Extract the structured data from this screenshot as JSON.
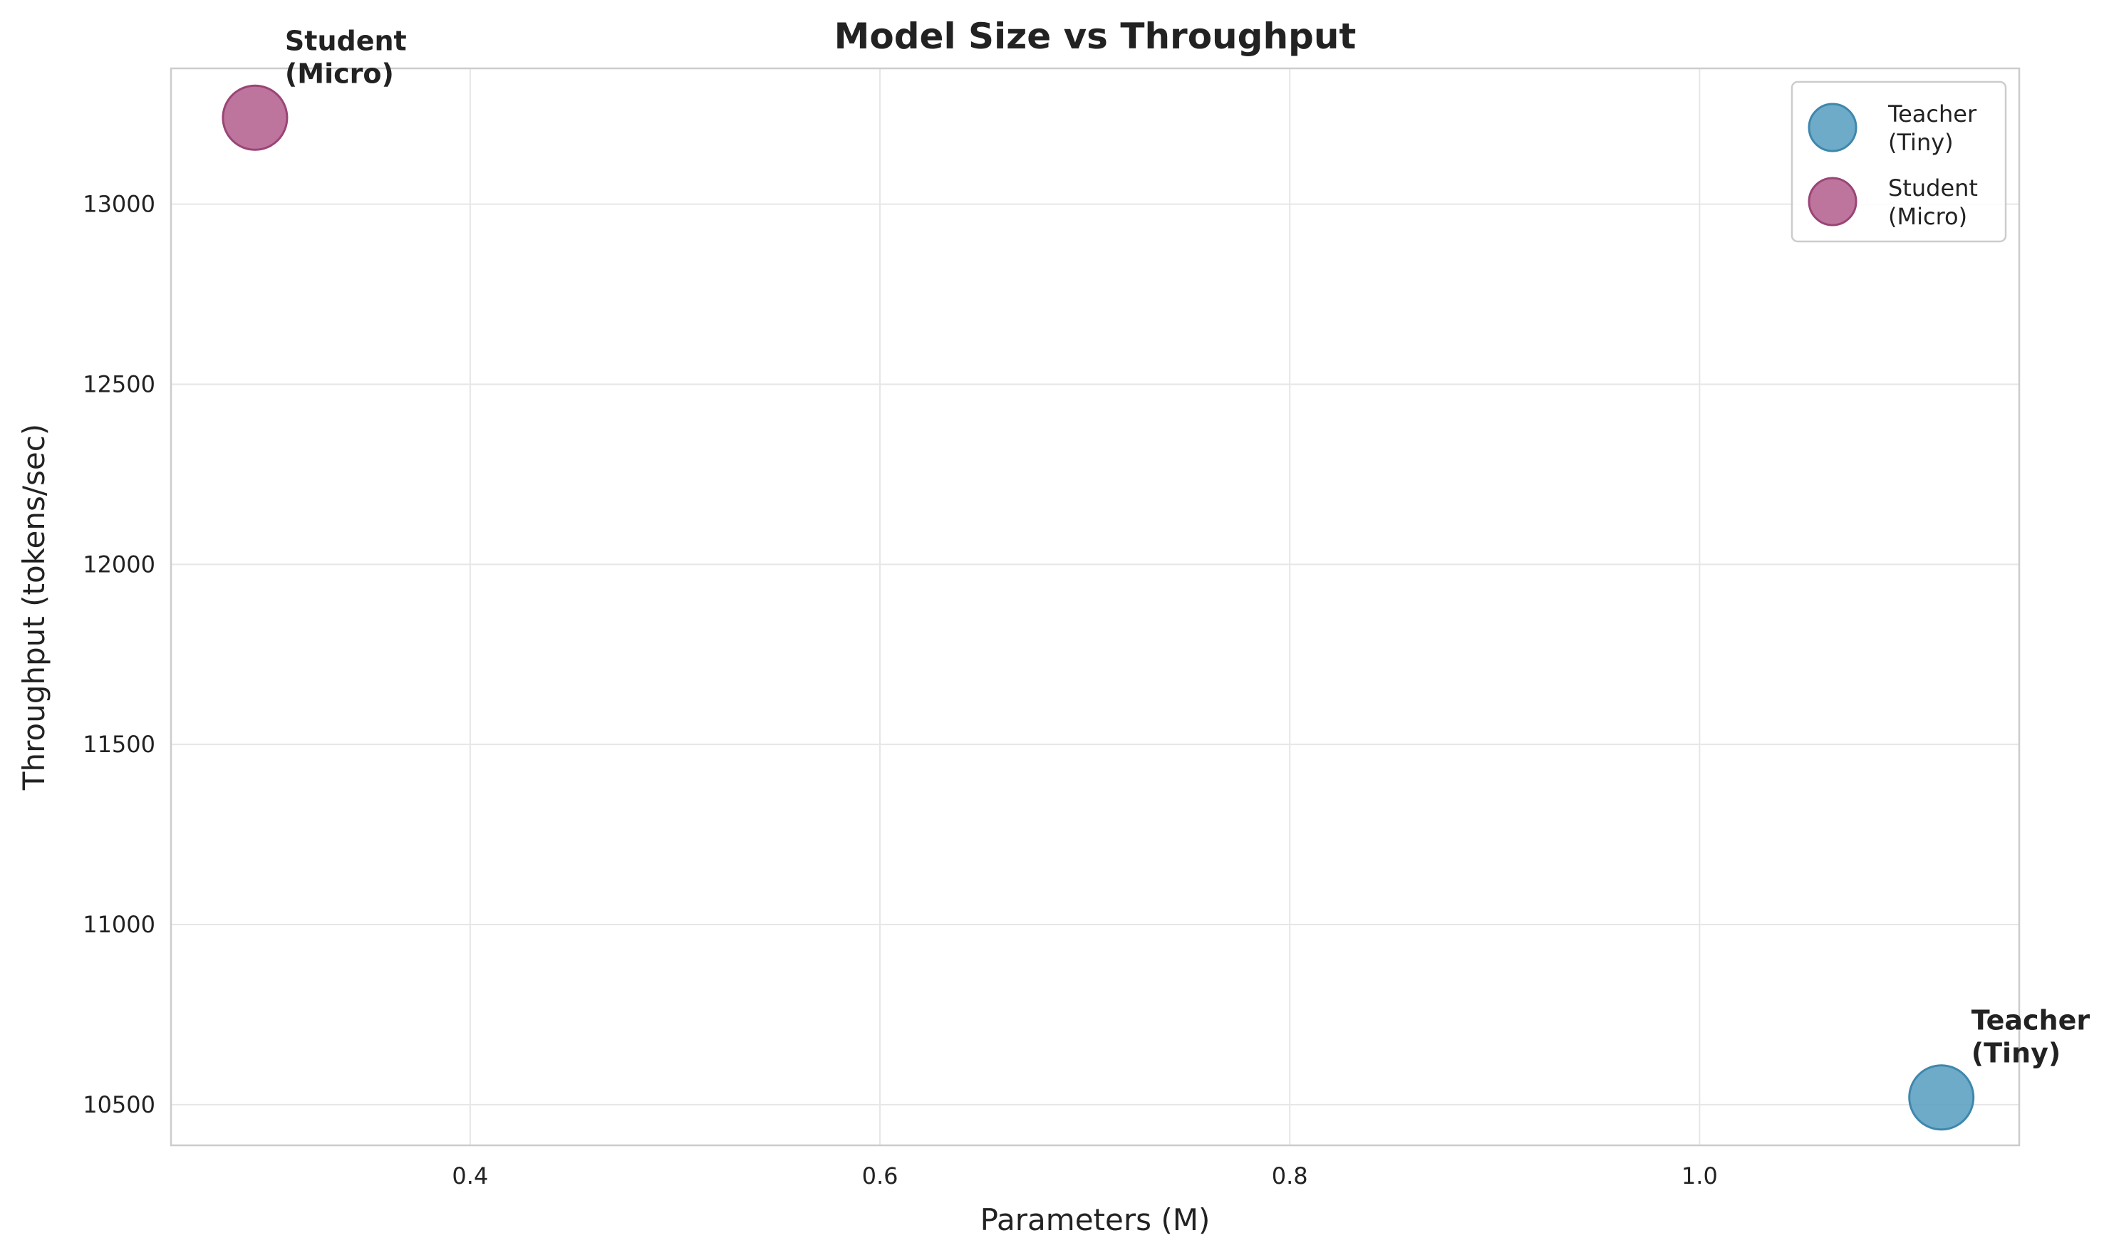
{
  "chart_data": {
    "type": "scatter",
    "title": "Model Size vs Throughput",
    "xlabel": "Parameters (M)",
    "ylabel": "Throughput (tokens/sec)",
    "xlim": [
      0.254,
      1.156
    ],
    "ylim": [
      10387,
      13377
    ],
    "xticks": [
      0.4,
      0.6,
      0.8,
      1.0
    ],
    "xtick_labels": [
      "0.4",
      "0.6",
      "0.8",
      "1.0"
    ],
    "yticks": [
      10500,
      11000,
      11500,
      12000,
      12500,
      13000
    ],
    "ytick_labels": [
      "10500",
      "11000",
      "11500",
      "12000",
      "12500",
      "13000"
    ],
    "grid": true,
    "legend_position": "top-right",
    "series": [
      {
        "name": "Teacher\n(Tiny)",
        "legend_lines": [
          "Teacher",
          "(Tiny)"
        ],
        "annotation_lines": [
          "Teacher",
          "(Tiny)"
        ],
        "color": "#5a9fc2",
        "edge_color": "#3f87ad",
        "x": [
          1.118
        ],
        "y": [
          10520
        ]
      },
      {
        "name": "Student\n(Micro)",
        "legend_lines": [
          "Student",
          "(Micro)"
        ],
        "annotation_lines": [
          "Student",
          "(Micro)"
        ],
        "color": "#b5628f",
        "edge_color": "#9a4576",
        "x": [
          0.295
        ],
        "y": [
          13240
        ]
      }
    ]
  }
}
